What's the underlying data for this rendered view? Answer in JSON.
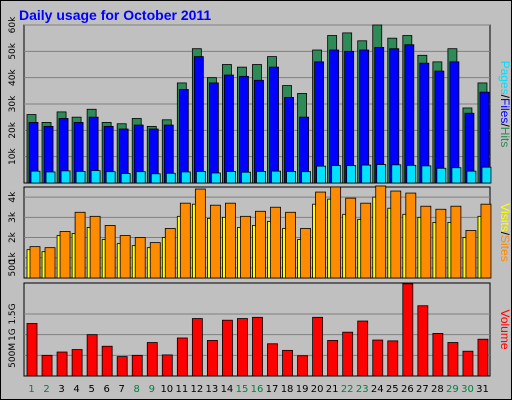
{
  "title": "Daily usage for October 2011",
  "colors": {
    "background": "#c0c0c0",
    "title": "#0000ff",
    "hits": "#2e8b57",
    "files": "#0000ff",
    "pages": "#00e0ff",
    "visits": "#ffff00",
    "sites": "#ff8c00",
    "volume": "#ff0000",
    "weekend_day": "#008040",
    "weekday": "#000000"
  },
  "chart_data": [
    {
      "type": "bar",
      "name": "usage-hits-files-pages",
      "categories": [
        "1",
        "2",
        "3",
        "4",
        "5",
        "6",
        "7",
        "8",
        "9",
        "10",
        "11",
        "12",
        "13",
        "14",
        "15",
        "16",
        "17",
        "18",
        "19",
        "20",
        "21",
        "22",
        "23",
        "24",
        "25",
        "26",
        "27",
        "28",
        "29",
        "30",
        "31"
      ],
      "weekend_days": [
        "1",
        "2",
        "8",
        "9",
        "15",
        "16",
        "22",
        "23",
        "29",
        "30"
      ],
      "ylim": [
        0,
        60000
      ],
      "yticks": [
        "10k",
        "20k",
        "30k",
        "40k",
        "50k",
        "60k"
      ],
      "ytick_values": [
        10000,
        20000,
        30000,
        40000,
        50000,
        60000
      ],
      "legend": [
        {
          "label": "Pages",
          "color": "#00e0ff"
        },
        {
          "label": "/",
          "color": "#000000"
        },
        {
          "label": "Files",
          "color": "#0000ff"
        },
        {
          "label": "/",
          "color": "#000000"
        },
        {
          "label": "Hits",
          "color": "#2e8b57"
        }
      ],
      "series": [
        {
          "name": "Hits",
          "values": [
            26000,
            23000,
            27000,
            25000,
            28000,
            23000,
            22500,
            24500,
            21500,
            24000,
            38000,
            51000,
            40000,
            45000,
            44000,
            45000,
            48000,
            37000,
            34000,
            50500,
            56000,
            57000,
            54000,
            60000,
            55000,
            56000,
            48500,
            46000,
            51000,
            28500,
            38000
          ]
        },
        {
          "name": "Files",
          "values": [
            23000,
            21500,
            24500,
            23000,
            25000,
            21500,
            20500,
            22000,
            20500,
            22000,
            35500,
            48000,
            38000,
            41000,
            40500,
            39000,
            44000,
            32500,
            25000,
            46000,
            50500,
            50000,
            50500,
            51500,
            51000,
            52500,
            45500,
            42500,
            46000,
            26500,
            34500
          ]
        },
        {
          "name": "Pages",
          "values": [
            4500,
            4200,
            4600,
            4400,
            4700,
            4300,
            3600,
            4300,
            3500,
            3700,
            4200,
            4400,
            3800,
            4400,
            4100,
            4400,
            4500,
            4400,
            4300,
            6400,
            6600,
            6600,
            6800,
            7000,
            6900,
            6700,
            6500,
            5600,
            5800,
            4500,
            6000
          ]
        }
      ]
    },
    {
      "type": "bar",
      "name": "usage-visits-sites",
      "categories": [
        "1",
        "2",
        "3",
        "4",
        "5",
        "6",
        "7",
        "8",
        "9",
        "10",
        "11",
        "12",
        "13",
        "14",
        "15",
        "16",
        "17",
        "18",
        "19",
        "20",
        "21",
        "22",
        "23",
        "24",
        "25",
        "26",
        "27",
        "28",
        "29",
        "30",
        "31"
      ],
      "ylim": [
        0,
        4500
      ],
      "yticks": [
        "500",
        "1k",
        "2k",
        "3k",
        "4k"
      ],
      "ytick_values": [
        500,
        1000,
        2000,
        3000,
        4000
      ],
      "legend": [
        {
          "label": "Visits",
          "color": "#ffff00"
        },
        {
          "label": "/",
          "color": "#000000"
        },
        {
          "label": "Sites",
          "color": "#ff8c00"
        }
      ],
      "series": [
        {
          "name": "Visits",
          "values": [
            1400,
            1300,
            2100,
            2200,
            2500,
            1900,
            1700,
            1600,
            1500,
            2000,
            3050,
            3650,
            2950,
            3000,
            2500,
            2600,
            2800,
            2450,
            1900,
            3650,
            3900,
            3150,
            2900,
            4000,
            3450,
            3150,
            3000,
            2750,
            2750,
            2000,
            3050
          ]
        },
        {
          "name": "Sites",
          "values": [
            1550,
            1500,
            2300,
            3250,
            3050,
            2600,
            2100,
            2000,
            1750,
            2450,
            3700,
            4400,
            3600,
            3700,
            3050,
            3300,
            3500,
            3250,
            2450,
            4250,
            4500,
            3950,
            3700,
            4550,
            4300,
            4200,
            3550,
            3400,
            3550,
            2350,
            3650
          ]
        }
      ]
    },
    {
      "type": "bar",
      "name": "usage-volume",
      "categories": [
        "1",
        "2",
        "3",
        "4",
        "5",
        "6",
        "7",
        "8",
        "9",
        "10",
        "11",
        "12",
        "13",
        "14",
        "15",
        "16",
        "17",
        "18",
        "19",
        "20",
        "21",
        "22",
        "23",
        "24",
        "25",
        "26",
        "27",
        "28",
        "29",
        "30",
        "31"
      ],
      "ylim": [
        0,
        2250
      ],
      "yticks": [
        "500M",
        "1G",
        "1.5G"
      ],
      "ytick_values": [
        500,
        1000,
        1500
      ],
      "legend": [
        {
          "label": "Volume",
          "color": "#ff0000"
        }
      ],
      "series": [
        {
          "name": "Volume",
          "values": [
            1270,
            500,
            580,
            640,
            1000,
            720,
            470,
            500,
            810,
            510,
            920,
            1390,
            860,
            1350,
            1390,
            1420,
            780,
            620,
            490,
            1420,
            860,
            1060,
            1330,
            870,
            850,
            2230,
            1700,
            1030,
            810,
            600,
            890
          ]
        }
      ]
    }
  ]
}
